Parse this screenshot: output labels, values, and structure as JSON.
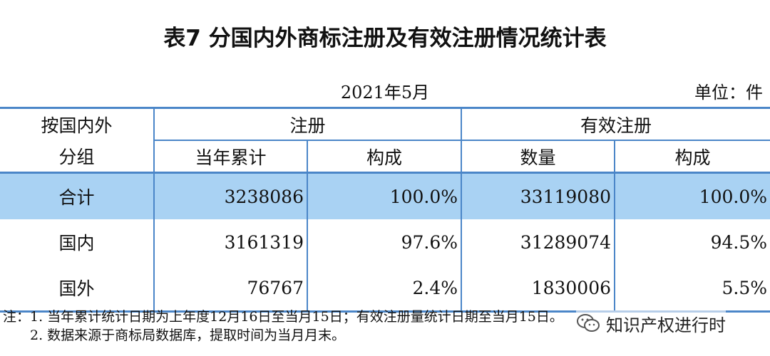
{
  "title": "表7  分国内外商标注册及有效注册情况统计表",
  "date": "2021年5月",
  "unit": "单位：件",
  "header": {
    "group_label_line1": "按国内外",
    "group_label_line2": "分组",
    "registration": "注册",
    "valid_registration": "有效注册",
    "year_cumulative": "当年累计",
    "composition": "构成",
    "quantity": "数量",
    "composition2": "构成"
  },
  "rows": [
    {
      "label": "合计",
      "reg": "3238086",
      "reg_pct": "100.0%",
      "valid": "33119080",
      "valid_pct": "100.0%"
    },
    {
      "label": "国内",
      "reg": "3161319",
      "reg_pct": "97.6%",
      "valid": "31289074",
      "valid_pct": "94.5%"
    },
    {
      "label": "国外",
      "reg": "76767",
      "reg_pct": "2.4%",
      "valid": "1830006",
      "valid_pct": "5.5%"
    }
  ],
  "notes": [
    "注：1. 当年累计统计日期为上年度12月16日至当月15日；有效注册量统计日期至当月15日。",
    "　　2. 数据来源于商标局数据库，提取时间为当月月末。"
  ],
  "watermark": {
    "icon": "wechat-icon",
    "text": "知识产权进行时"
  }
}
